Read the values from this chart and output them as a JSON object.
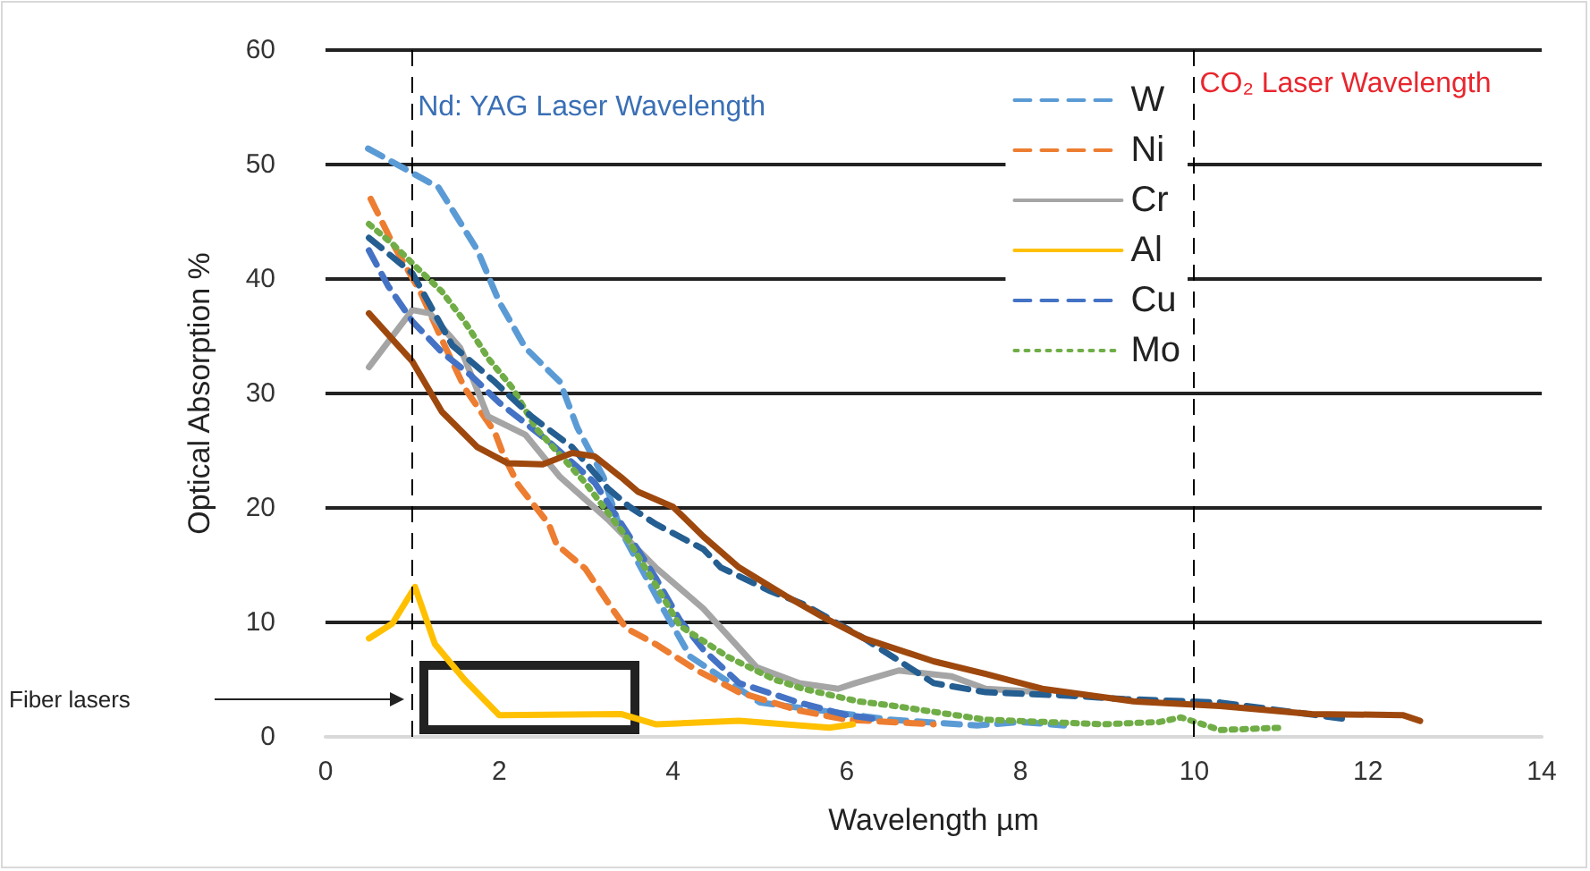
{
  "chart_data": {
    "type": "line",
    "xlabel": "Wavelength µm",
    "ylabel": "Optical Absorption %",
    "xlim": [
      0,
      14
    ],
    "xticks": [
      0,
      2,
      4,
      6,
      8,
      10,
      12,
      14
    ],
    "ylim": [
      0,
      60
    ],
    "yticks": [
      0,
      10,
      20,
      30,
      40,
      50,
      60
    ],
    "grid": "y",
    "legend": "top right",
    "marker": "none",
    "ref_lines": [
      {
        "axis": "x",
        "value": 1,
        "line_style": "dashed",
        "color": "#000000"
      },
      {
        "axis": "x",
        "value": 10,
        "line_style": "dashed",
        "color": "#000000"
      }
    ],
    "annotations": [
      {
        "text": "Nd: YAG Laser Wavelength",
        "x": 1,
        "y": 55
      },
      {
        "text": "CO₂ Laser Wavelength",
        "x": 10,
        "y": 57
      },
      "Fiber lasers"
    ],
    "series": [
      {
        "name": "W",
        "color": "#5b9bd5",
        "line_style": "dashed",
        "x": [
          0.49,
          1.3,
          1.75,
          2.0,
          2.3,
          2.7,
          2.9,
          3.2,
          3.4,
          3.9,
          4.2,
          5,
          6,
          6.5,
          7.5,
          8,
          8.5
        ],
        "values": [
          51.4,
          48,
          42.5,
          38,
          34,
          31,
          27,
          22.7,
          18,
          11,
          7,
          3,
          2,
          1.5,
          1,
          1.3,
          1
        ]
      },
      {
        "name": "Ni",
        "color": "#ed7d31",
        "line_style": "dashed",
        "x": [
          0.52,
          0.78,
          1.09,
          1.34,
          1.6,
          1.95,
          2.05,
          2.22,
          2.57,
          2.66,
          2.99,
          3.3,
          3.46,
          3.8,
          4.28,
          4.76,
          5.45,
          6,
          7
        ],
        "values": [
          47,
          43,
          38.9,
          34.7,
          30.5,
          26.6,
          24.6,
          22,
          18.6,
          16.8,
          14.7,
          11.2,
          9.5,
          8.1,
          5.8,
          3.9,
          2.3,
          1.5,
          1.1
        ]
      },
      {
        "name": "Cr",
        "color": "#a5a5a5",
        "line_style": "solid",
        "x": [
          0.5,
          1,
          1.2,
          1.55,
          1.87,
          2.3,
          2.7,
          3.25,
          3.8,
          4.35,
          4.96,
          5.45,
          5.9,
          6.1,
          6.6,
          7.2,
          7.6,
          8.25
        ],
        "values": [
          32.3,
          37.3,
          37,
          34,
          28,
          26.4,
          22.7,
          19,
          14.8,
          11.2,
          6.1,
          4.7,
          4.2,
          4.7,
          5.8,
          5.3,
          4.2,
          3.9
        ]
      },
      {
        "name": "Al",
        "color": "#ffc000",
        "line_style": "solid",
        "x": [
          0.5,
          0.77,
          1.03,
          1.26,
          1.6,
          2.0,
          3.4,
          3.8,
          4.76,
          5.8,
          6.07
        ],
        "values": [
          8.6,
          9.9,
          13.1,
          8.1,
          5,
          1.9,
          2,
          1.1,
          1.4,
          0.8,
          1.1
        ]
      },
      {
        "name": "Cu",
        "color": "#4472c4",
        "line_style": "dashed",
        "x": [
          0.5,
          0.72,
          1,
          1.34,
          1.67,
          2,
          2.57,
          3.1,
          3.5,
          3.8,
          4.08,
          4.35,
          4.76,
          5.45,
          6,
          6.3
        ],
        "values": [
          42.5,
          39.4,
          36.3,
          33.6,
          31.6,
          29.2,
          25.8,
          22.2,
          17.5,
          13.9,
          10.2,
          7.6,
          4.7,
          3,
          1.9,
          1.6
        ]
      },
      {
        "name": "Mo",
        "color": "#70ad47",
        "line_style": "dotted",
        "x": [
          0.5,
          0.78,
          1.05,
          1.34,
          1.6,
          1.88,
          2.15,
          2.43,
          2.99,
          3.46,
          3.8,
          4.08,
          4.63,
          5.17,
          5.5,
          6.13,
          6.55,
          7.6,
          8.96,
          9.6,
          9.85,
          10.3,
          11
        ],
        "values": [
          44.8,
          43,
          41,
          38.9,
          36.3,
          33,
          30.5,
          26.9,
          22.2,
          17.5,
          13.3,
          9.7,
          7,
          5,
          4.2,
          3.1,
          2.7,
          1.5,
          1.1,
          1.3,
          1.7,
          0.6,
          0.8
        ]
      },
      {
        "color": "#255e91",
        "line_style": "dashed",
        "x": [
          0.5,
          1,
          1.46,
          1.95,
          2.37,
          2.84,
          3.25,
          3.5,
          3.8,
          4.35,
          4.55,
          5.1,
          5.5,
          6.2,
          6.55,
          7.0,
          7.6,
          8.55,
          9.2,
          10.3,
          11.7
        ],
        "values": [
          43.6,
          40.5,
          34.2,
          31,
          28,
          25.3,
          21.7,
          20.1,
          18.6,
          16.4,
          14.8,
          12.8,
          11.6,
          8.6,
          6.9,
          4.7,
          3.9,
          3.6,
          3.3,
          3,
          1.6
        ]
      },
      {
        "color": "#9e480e",
        "line_style": "solid",
        "x": [
          0.5,
          1,
          1.34,
          1.75,
          2.1,
          2.5,
          2.84,
          3.1,
          3.4,
          3.6,
          4.0,
          4.35,
          4.76,
          5.3,
          5.72,
          6.2,
          7.0,
          7.6,
          8.25,
          9.3,
          10.3,
          11.35,
          12.4,
          12.6
        ],
        "values": [
          37,
          32.8,
          28.4,
          25.3,
          23.9,
          23.8,
          24.8,
          24.5,
          22.7,
          21.4,
          20.1,
          17.5,
          14.8,
          12.3,
          10.5,
          8.6,
          6.6,
          5.5,
          4.2,
          3.1,
          2.7,
          2,
          1.9,
          1.4
        ]
      }
    ]
  }
}
